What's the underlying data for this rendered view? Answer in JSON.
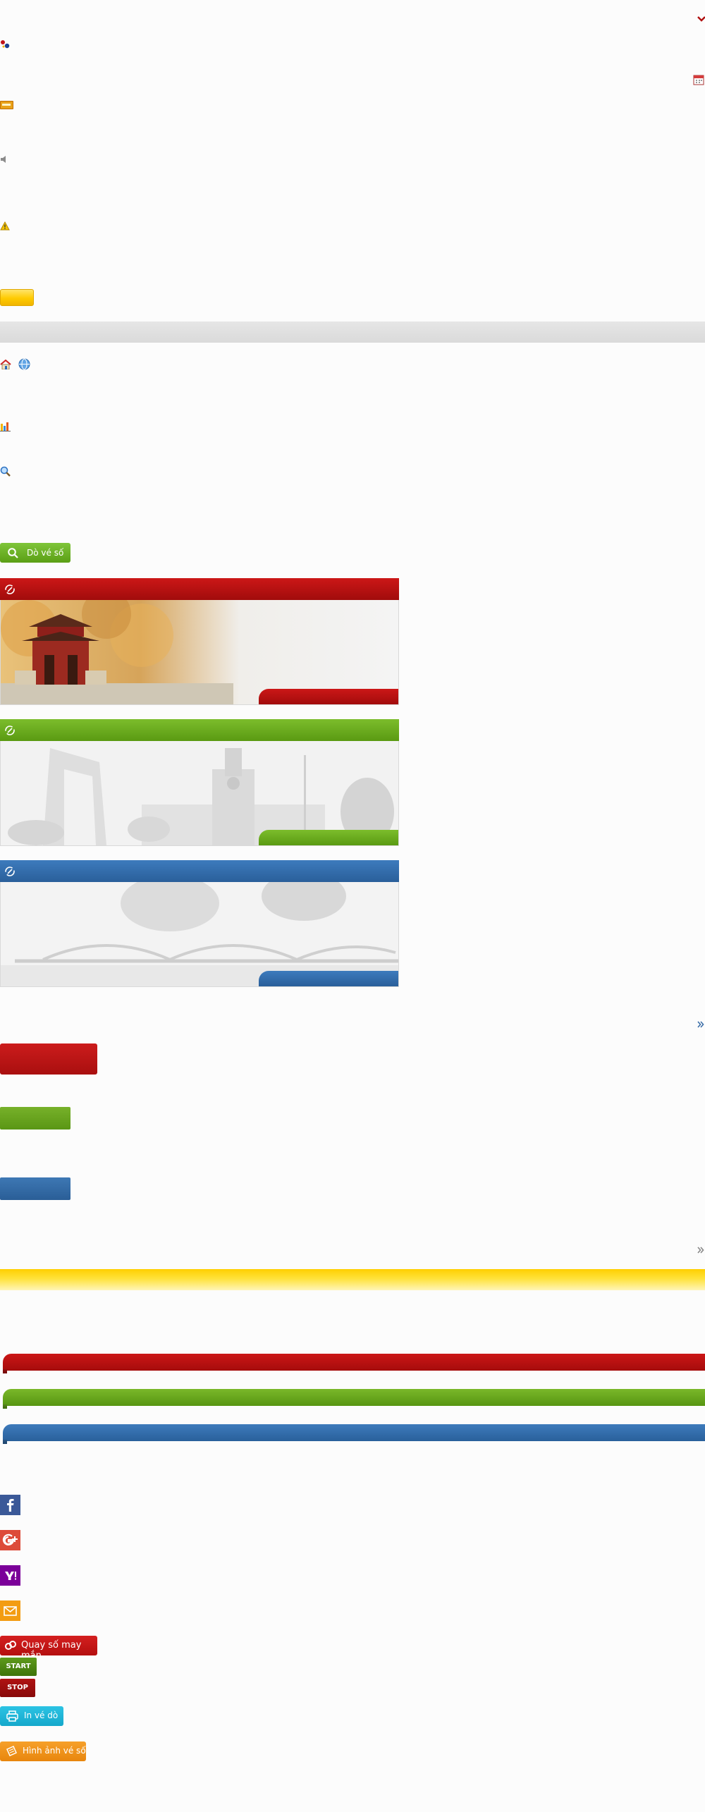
{
  "search": {
    "button_label": "Dò vé số"
  },
  "tools": {
    "lucky_draw_label": "Quay số may mắn",
    "start_label": "START",
    "stop_label": "STOP",
    "print_label": "In vé dò",
    "ticket_images_label": "Hình ảnh vé số"
  },
  "colors": {
    "north_red": "#b30e0e",
    "central_green": "#5fa019",
    "south_blue": "#2e67a5",
    "accent_yellow": "#ffcf00",
    "facebook": "#3b5998",
    "google_plus": "#dd4b39",
    "yahoo": "#7b0099",
    "email": "#f39c12"
  },
  "icons": {
    "header": [
      "chevron-down-icon",
      "logo-dots-icon",
      "calendar-icon",
      "new-badge-icon",
      "speaker-icon",
      "warning-icon"
    ],
    "nav": [
      "home-icon",
      "globe-icon",
      "bar-chart-icon",
      "magnifier-icon"
    ],
    "social": [
      "facebook-icon",
      "google-plus-icon",
      "yahoo-icon",
      "email-icon"
    ]
  }
}
